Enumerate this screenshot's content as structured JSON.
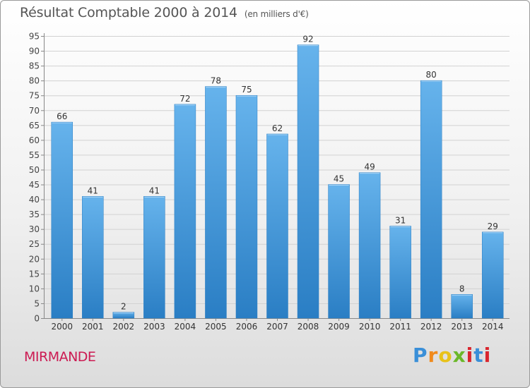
{
  "header": {
    "title": "Résultat Comptable 2000 à 2014",
    "unit": "(en milliers d'€)"
  },
  "footer": {
    "town": "MIRMANDE",
    "logo": "Proxiti",
    "logo_letters": [
      "P",
      "r",
      "o",
      "x",
      "i",
      "t",
      "i"
    ]
  },
  "colors": {
    "bar_light": "#66b3ec",
    "bar_dark": "#2a7ec4",
    "town": "#cc1a52"
  },
  "chart_data": {
    "type": "bar",
    "title": "Résultat Comptable 2000 à 2014",
    "ylabel": "(en milliers d'€)",
    "xlabel": "",
    "categories": [
      "2000",
      "2001",
      "2002",
      "2003",
      "2004",
      "2005",
      "2006",
      "2007",
      "2008",
      "2009",
      "2010",
      "2011",
      "2012",
      "2013",
      "2014"
    ],
    "values": [
      66,
      41,
      2,
      41,
      72,
      78,
      75,
      62,
      92,
      45,
      49,
      31,
      80,
      8,
      29
    ],
    "ylim": [
      0,
      95
    ],
    "yticks": [
      0,
      5,
      10,
      15,
      20,
      25,
      30,
      35,
      40,
      45,
      50,
      55,
      60,
      65,
      70,
      75,
      80,
      85,
      90,
      95
    ],
    "grid": true
  }
}
